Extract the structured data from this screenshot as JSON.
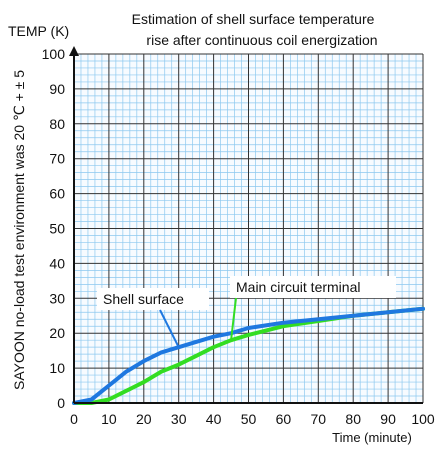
{
  "chart_data": {
    "type": "line",
    "title_lines": [
      "Estimation of shell surface temperature",
      "rise after continuous coil energization"
    ],
    "ylabel": "TEMP (K)",
    "xlabel": "Time (minute)",
    "side_note": "SAYOON no-load test environment was 20  ℃ + ± 5",
    "xlim": [
      0,
      100
    ],
    "ylim": [
      0,
      100
    ],
    "x_ticks": [
      "0",
      "10",
      "20",
      "30",
      "40",
      "50",
      "60",
      "70",
      "80",
      "90",
      "100"
    ],
    "y_ticks": [
      "0",
      "10",
      "20",
      "30",
      "40",
      "50",
      "60",
      "70",
      "80",
      "90",
      "100"
    ],
    "grid": true,
    "series": [
      {
        "name": "Shell surface",
        "color": "#1f78e0",
        "points": [
          [
            0,
            0
          ],
          [
            5,
            1
          ],
          [
            10,
            5
          ],
          [
            15,
            9
          ],
          [
            20,
            12
          ],
          [
            25,
            14.5
          ],
          [
            30,
            16
          ],
          [
            35,
            17.5
          ],
          [
            40,
            19
          ],
          [
            45,
            20
          ],
          [
            50,
            21.5
          ],
          [
            60,
            23
          ],
          [
            70,
            24
          ],
          [
            80,
            25
          ],
          [
            90,
            26
          ],
          [
            100,
            27
          ]
        ]
      },
      {
        "name": "Main circuit terminal",
        "color": "#33dd22",
        "points": [
          [
            0,
            0
          ],
          [
            5,
            0
          ],
          [
            10,
            1
          ],
          [
            15,
            3.5
          ],
          [
            20,
            6
          ],
          [
            25,
            9
          ],
          [
            30,
            11
          ],
          [
            35,
            13.5
          ],
          [
            40,
            16
          ],
          [
            45,
            18
          ],
          [
            50,
            19.5
          ],
          [
            60,
            22
          ],
          [
            70,
            23.5
          ],
          [
            80,
            25
          ],
          [
            90,
            26
          ],
          [
            100,
            27
          ]
        ]
      }
    ],
    "callouts": [
      {
        "text": "Shell surface",
        "series": 0
      },
      {
        "text": "Main circuit terminal",
        "series": 1
      }
    ]
  }
}
